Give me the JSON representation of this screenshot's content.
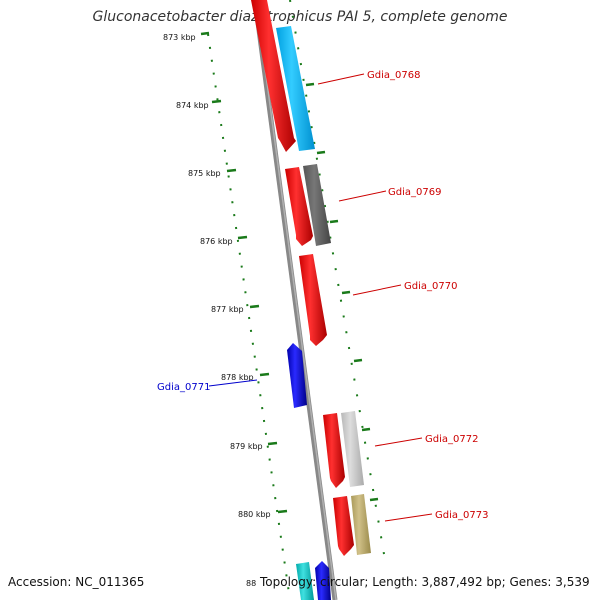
{
  "title": "Gluconacetobacter diazotrophicus PAI 5, complete genome",
  "accession": "Accession: NC_011365",
  "topology": "Topology: circular; Length: 3,887,492 bp; Genes: 3,539",
  "ruler": {
    "labels": [
      "873 kbp",
      "874 kbp",
      "875 kbp",
      "876 kbp",
      "877 kbp",
      "878 kbp",
      "879 kbp",
      "880 kbp",
      "88"
    ],
    "tick_color": "#1a7a1a"
  },
  "genes": [
    {
      "id": "Gdia_0768",
      "label_color": "#cc0000"
    },
    {
      "id": "Gdia_0769",
      "label_color": "#cc0000"
    },
    {
      "id": "Gdia_0770",
      "label_color": "#cc0000"
    },
    {
      "id": "Gdia_0771",
      "label_color": "#0000cc"
    },
    {
      "id": "Gdia_0772",
      "label_color": "#cc0000"
    },
    {
      "id": "Gdia_0773",
      "label_color": "#cc0000"
    }
  ],
  "colors": {
    "gene_red": "#ff0000",
    "gene_blue": "#0000ee",
    "cds_cyan": "#00bfff",
    "cds_darkgray": "#666666",
    "cds_lightgray": "#c8c8c8",
    "cds_khaki": "#c0b070",
    "backbone": "#888888"
  }
}
